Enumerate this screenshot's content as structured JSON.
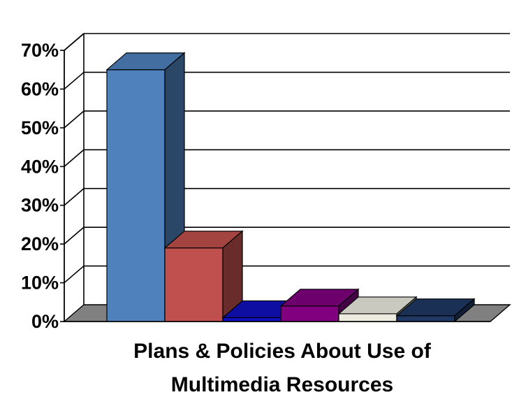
{
  "chart_data": {
    "type": "bar",
    "title": "",
    "xlabel": "Plans & Policies About Use of Multimedia Resources",
    "xlabel_lines": [
      "Plans & Policies About Use of",
      "Multimedia Resources"
    ],
    "ylabel": "",
    "ylim": [
      0,
      70
    ],
    "yticks": [
      "0%",
      "10%",
      "20%",
      "30%",
      "40%",
      "50%",
      "60%",
      "70%"
    ],
    "grid": true,
    "three_d": true,
    "series": [
      {
        "values": [
          65
        ],
        "color": "#4f81bd"
      },
      {
        "values": [
          19
        ],
        "color": "#c0504d"
      },
      {
        "values": [
          1
        ],
        "color": "#1010c0"
      },
      {
        "values": [
          4
        ],
        "color": "#800080"
      },
      {
        "values": [
          2
        ],
        "color": "#eeece1"
      },
      {
        "values": [
          1.5
        ],
        "color": "#1f3864"
      }
    ]
  }
}
